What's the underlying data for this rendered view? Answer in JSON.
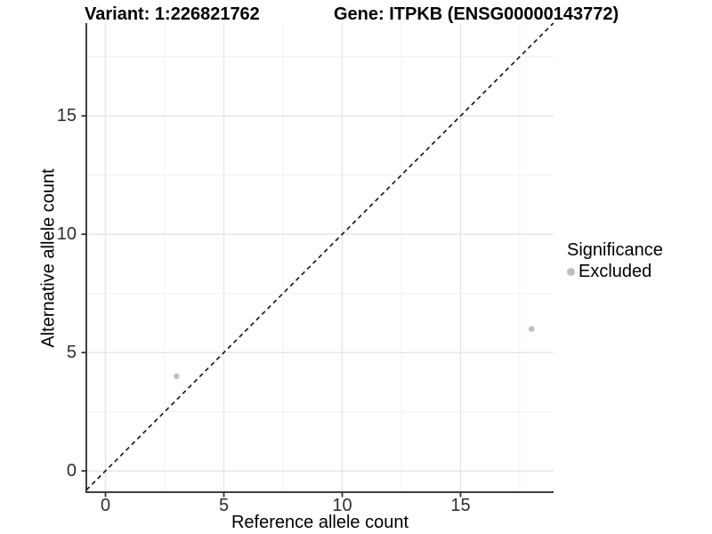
{
  "titles": {
    "variant": "Variant: 1:226821762",
    "gene": "Gene: ITPKB (ENSG00000143772)"
  },
  "axes": {
    "x_label": "Reference allele count",
    "y_label": "Alternative allele count"
  },
  "legend": {
    "title": "Significance",
    "items": [
      {
        "label": "Excluded",
        "color": "#bebebe"
      }
    ]
  },
  "chart_data": {
    "type": "scatter",
    "title": "Variant: 1:226821762 — Gene: ITPKB (ENSG00000143772)",
    "xlabel": "Reference allele count",
    "ylabel": "Alternative allele count",
    "x_ticks": [
      0,
      5,
      10,
      15
    ],
    "y_ticks": [
      0,
      5,
      10,
      15
    ],
    "xlim": [
      -0.81,
      18.93
    ],
    "ylim": [
      -0.9,
      18.92
    ],
    "grid": true,
    "legend_position": "right",
    "reference_line": {
      "type": "identity",
      "equation": "y = x",
      "style": "dashed",
      "color": "#111111"
    },
    "series": [
      {
        "name": "Excluded",
        "color": "#c1c1c1",
        "points": [
          [
            3,
            4
          ],
          [
            18,
            6
          ]
        ]
      }
    ]
  },
  "style": {
    "grid_major_color": "#e7e7e7",
    "grid_minor_color": "#f3f3f3",
    "axis_line_color": "#404040",
    "tick_color": "#333333"
  }
}
